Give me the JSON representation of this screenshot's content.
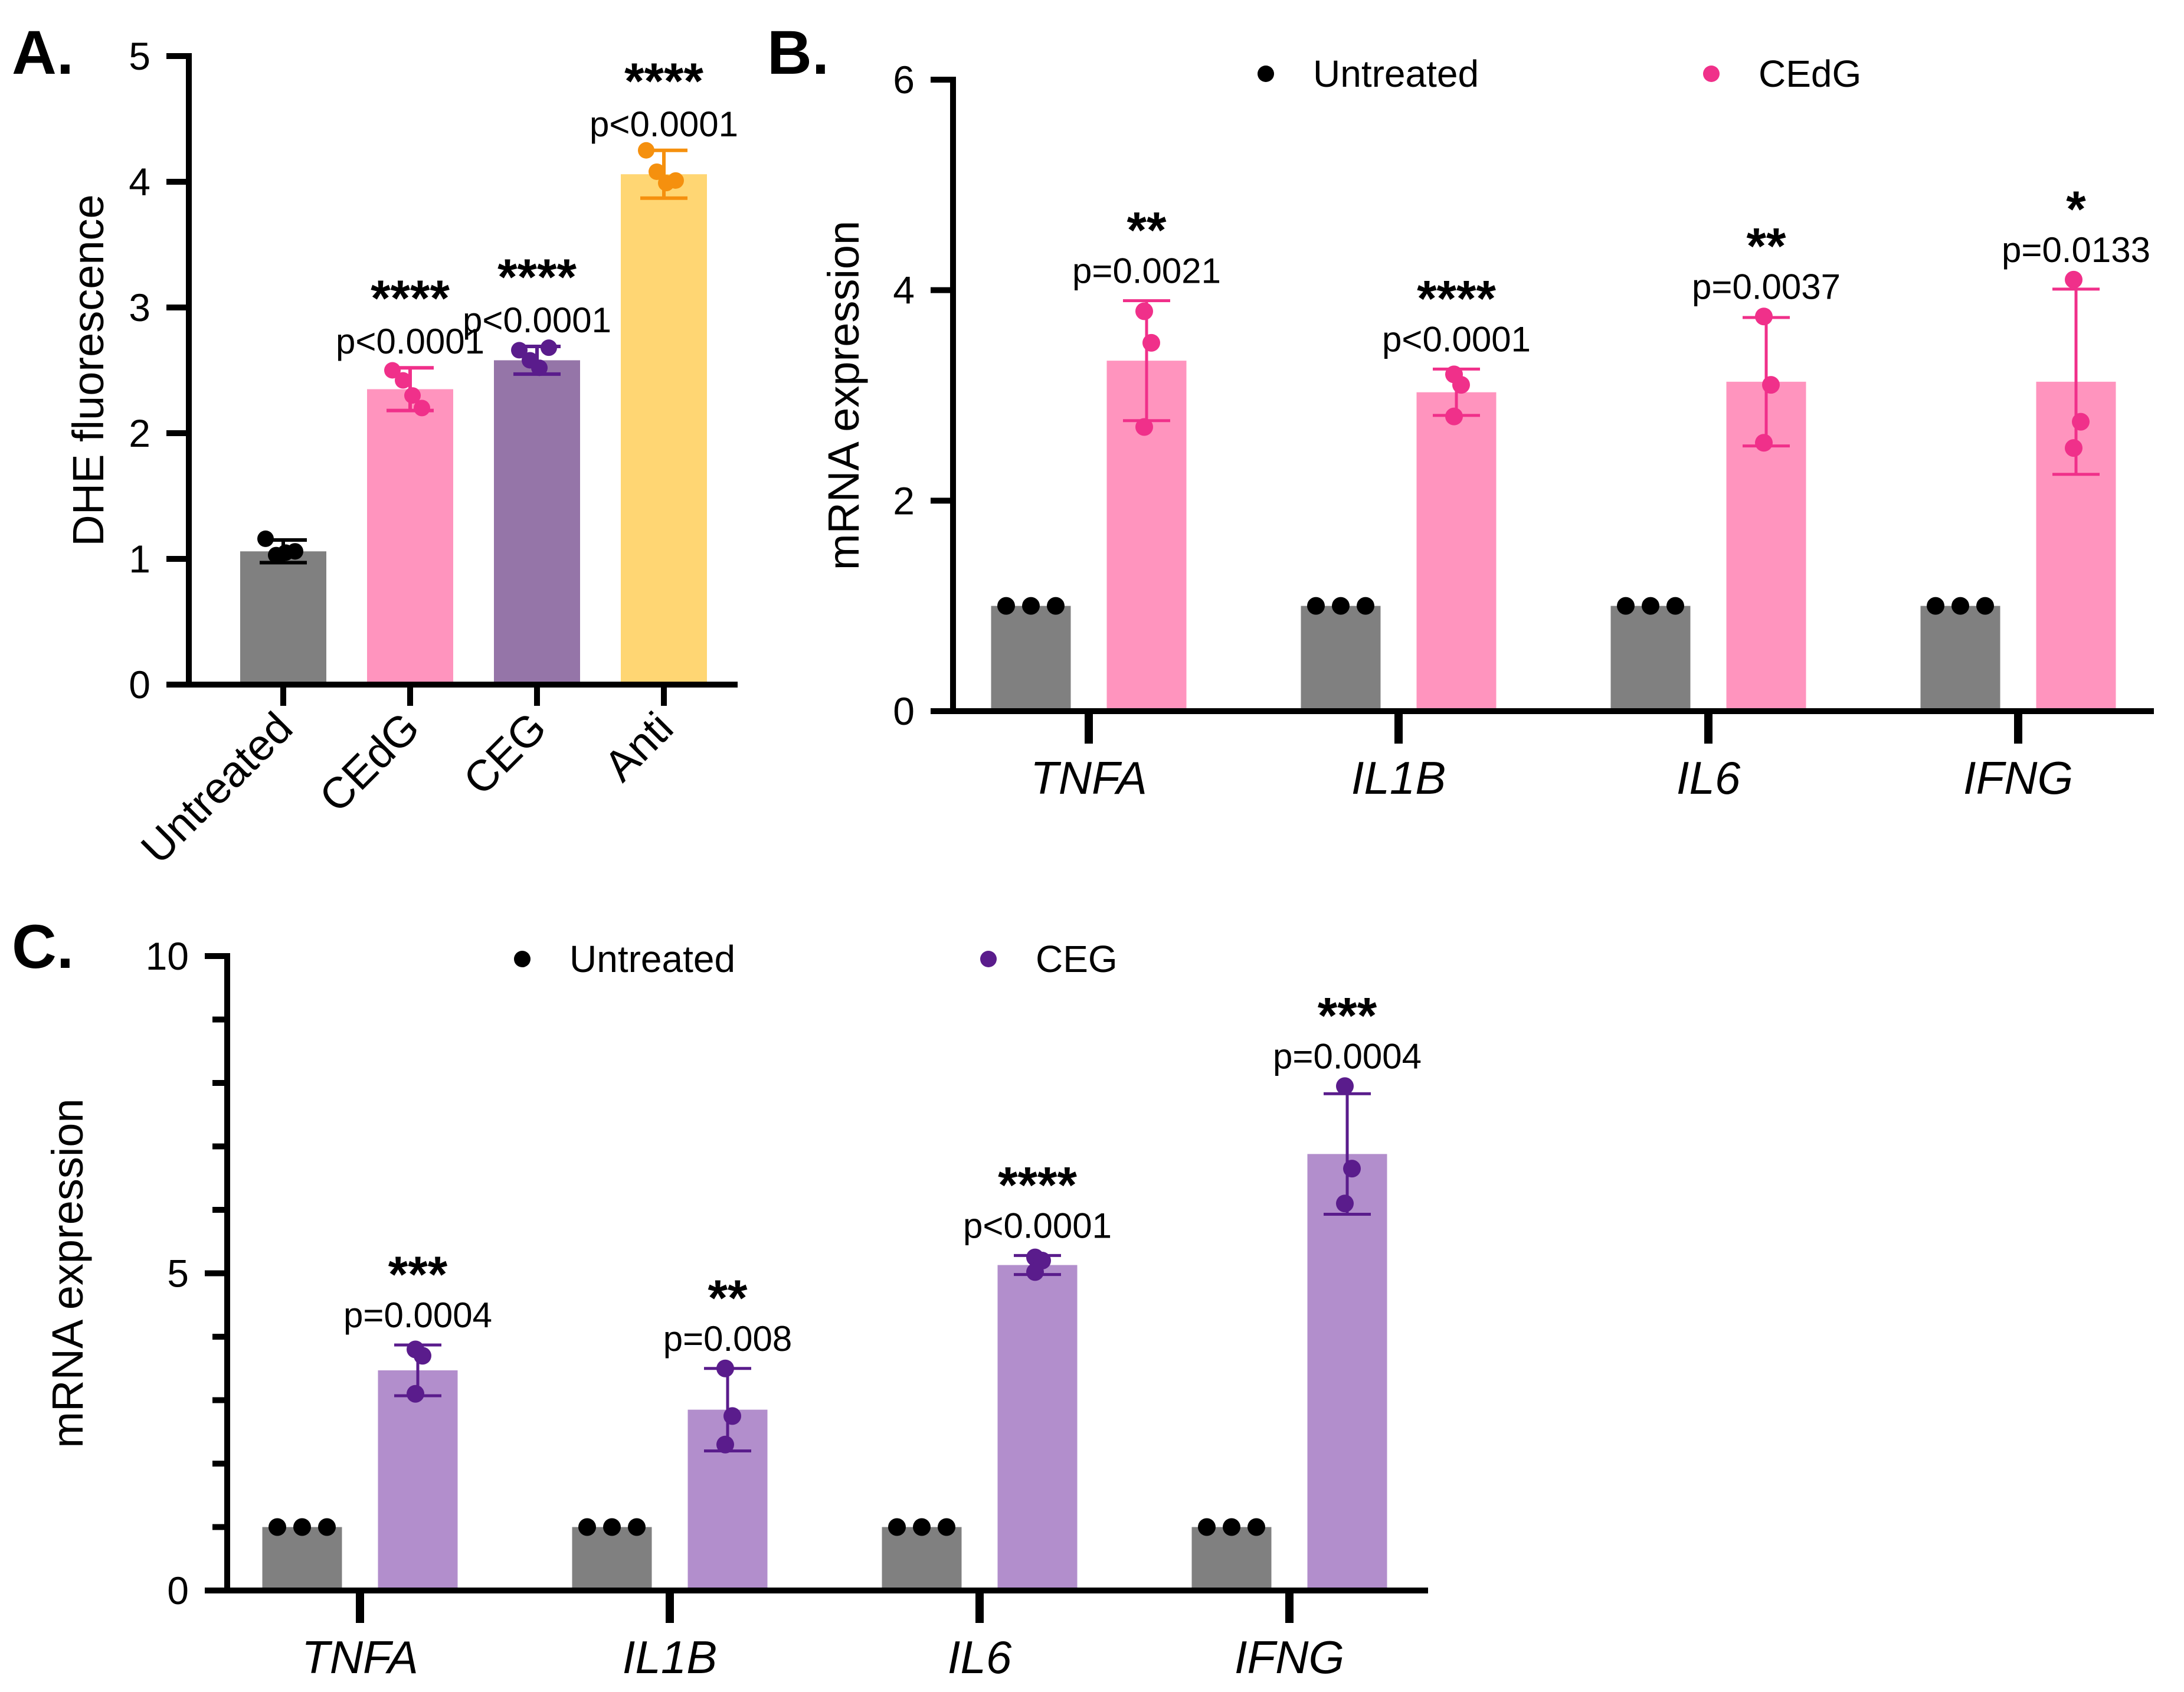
{
  "chart_data": [
    {
      "panel": "A.",
      "type": "bar",
      "ylabel": "DHE fluorescence",
      "ylim": [
        0,
        5
      ],
      "yticks": [
        0,
        1,
        2,
        3,
        4,
        5
      ],
      "categories": [
        "Untreated",
        "CEdG",
        "CEG",
        "Anti"
      ],
      "colors": [
        "#808080",
        "#FF94BE",
        "#9575A8",
        "#FFD673"
      ],
      "point_colors": [
        "#000000",
        "#F0308A",
        "#5A1C8C",
        "#F5900E"
      ],
      "values": [
        1.06,
        2.35,
        2.58,
        4.06
      ],
      "errors": [
        0.09,
        0.17,
        0.11,
        0.19
      ],
      "points": [
        [
          1.16,
          1.03,
          1.05,
          1.06
        ],
        [
          2.5,
          2.42,
          2.3,
          2.2
        ],
        [
          2.66,
          2.58,
          2.52,
          2.68
        ],
        [
          4.25,
          4.08,
          3.99,
          4.01
        ]
      ],
      "stars": [
        "",
        "****",
        "****",
        "****"
      ],
      "pvalues": [
        "",
        "p<0.0001",
        "p<0.0001",
        "p<0.0001"
      ]
    },
    {
      "panel": "B.",
      "type": "bar",
      "ylabel": "mRNA expression",
      "ylim": [
        0,
        6
      ],
      "yticks": [
        0,
        2,
        4,
        6
      ],
      "categories": [
        "TNFA",
        "IL1B",
        "IL6",
        "IFNG"
      ],
      "legend": [
        "Untreated",
        "CEdG"
      ],
      "series": [
        {
          "name": "Untreated",
          "color": "#808080",
          "point_color": "#000000",
          "values": [
            1,
            1,
            1,
            1
          ],
          "errors": [
            0,
            0,
            0,
            0
          ],
          "points": [
            [
              1,
              1,
              1
            ],
            [
              1,
              1,
              1
            ],
            [
              1,
              1,
              1
            ],
            [
              1,
              1,
              1
            ]
          ]
        },
        {
          "name": "CEdG",
          "color": "#FF94BE",
          "point_color": "#F0308A",
          "values": [
            3.33,
            3.03,
            3.13,
            3.13
          ],
          "errors": [
            0.57,
            0.22,
            0.61,
            0.88
          ],
          "points": [
            [
              3.8,
              3.5,
              2.7
            ],
            [
              3.2,
              3.1,
              2.8
            ],
            [
              3.75,
              3.1,
              2.55
            ],
            [
              4.1,
              2.75,
              2.5
            ]
          ]
        }
      ],
      "stars": [
        "**",
        "****",
        "**",
        "*"
      ],
      "pvalues": [
        "p=0.0021",
        "p<0.0001",
        "p=0.0037",
        "p=0.0133"
      ]
    },
    {
      "panel": "C.",
      "type": "bar",
      "ylabel": "mRNA expression",
      "ylim": [
        0,
        10
      ],
      "yticks": [
        0,
        5,
        10
      ],
      "minor_ticks": 1,
      "categories": [
        "TNFA",
        "IL1B",
        "IL6",
        "IFNG"
      ],
      "legend": [
        "Untreated",
        "CEG"
      ],
      "series": [
        {
          "name": "Untreated",
          "color": "#808080",
          "point_color": "#000000",
          "values": [
            1,
            1,
            1,
            1
          ],
          "errors": [
            0,
            0,
            0,
            0
          ],
          "points": [
            [
              1,
              1,
              1
            ],
            [
              1,
              1,
              1
            ],
            [
              1,
              1,
              1
            ],
            [
              1,
              1,
              1
            ]
          ]
        },
        {
          "name": "CEG",
          "color": "#B28ECC",
          "point_color": "#5A1C8C",
          "values": [
            3.47,
            2.85,
            5.13,
            6.88
          ],
          "errors": [
            0.4,
            0.65,
            0.15,
            0.95
          ],
          "points": [
            [
              3.8,
              3.7,
              3.1
            ],
            [
              3.5,
              2.75,
              2.3
            ],
            [
              5.25,
              5.2,
              5.02
            ],
            [
              7.95,
              6.65,
              6.1
            ]
          ]
        }
      ],
      "stars": [
        "***",
        "**",
        "****",
        "***"
      ],
      "pvalues": [
        "p=0.0004",
        "p=0.008",
        "p<0.0001",
        "p=0.0004"
      ]
    }
  ]
}
